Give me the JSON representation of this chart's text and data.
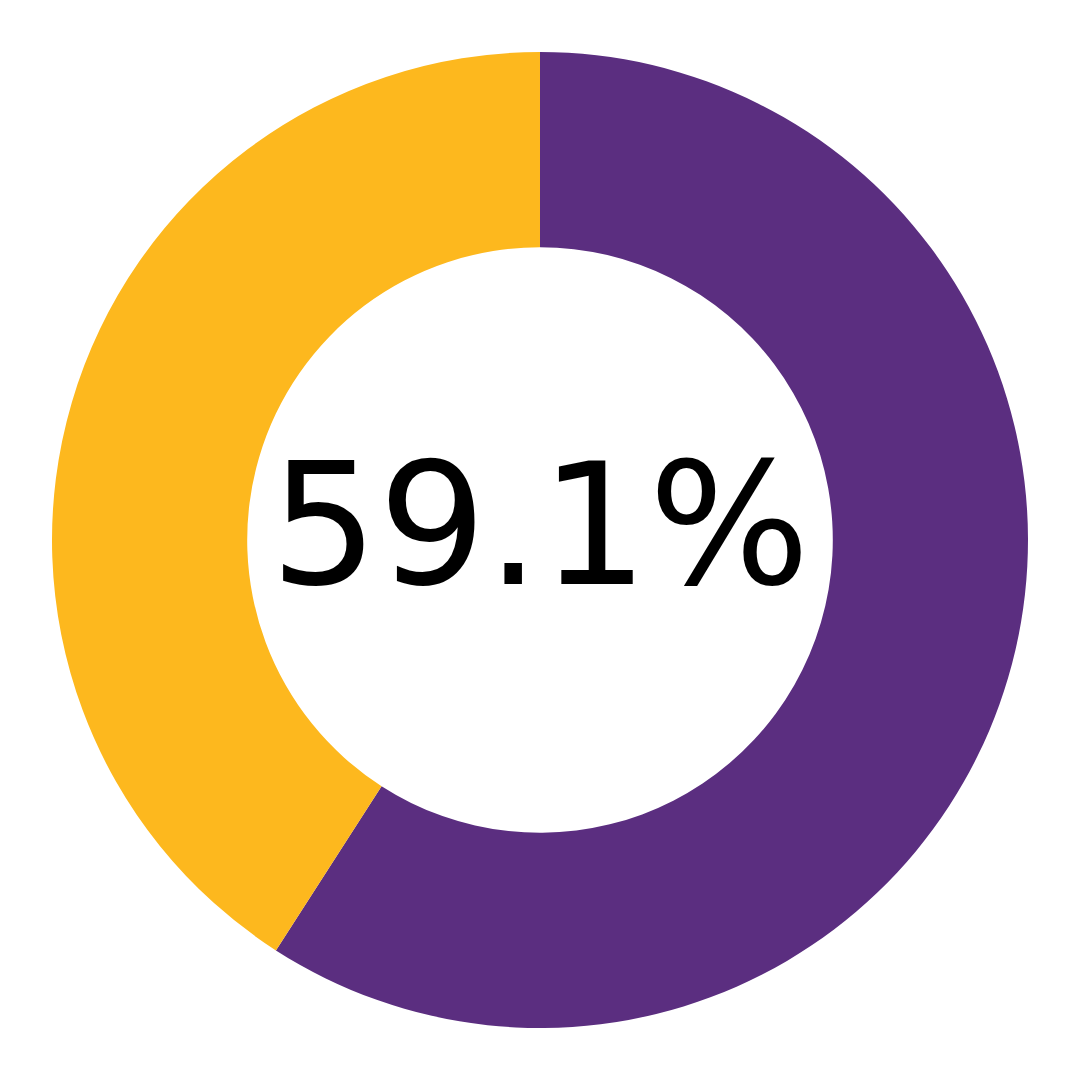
{
  "chart_data": {
    "type": "donut",
    "categories": [
      null,
      null
    ],
    "values": [
      59.1,
      40.9
    ],
    "colors": [
      "#5b2e80",
      "#fdb81e"
    ],
    "value_labels": [
      "59.1%",
      null
    ],
    "legend": false
  }
}
